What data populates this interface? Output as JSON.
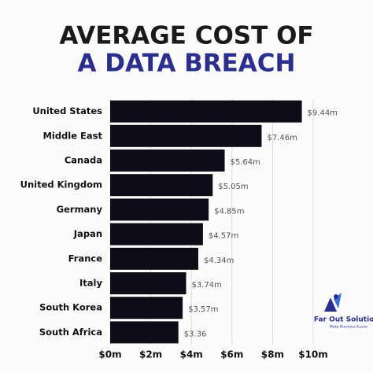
{
  "chart_data": {
    "type": "barh",
    "title_lines": [
      "AVERAGE COST OF",
      "A DATA BREACH"
    ],
    "title_colors": [
      "#1a1a1a",
      "#2b2f8c"
    ],
    "categories": [
      "United States",
      "Middle East",
      "Canada",
      "United Kingdom",
      "Germany",
      "Japan",
      "France",
      "Italy",
      "South Korea",
      "South Africa"
    ],
    "values": [
      9.44,
      7.46,
      5.64,
      5.05,
      4.85,
      4.57,
      4.34,
      3.74,
      3.57,
      3.36
    ],
    "value_labels": [
      "$9.44m",
      "$7.46m",
      "$5.64m",
      "$5.05m",
      "$4.85m",
      "$4.57m",
      "$4.34m",
      "$3.74m",
      "$3.57m",
      "$3.36"
    ],
    "color": "#0e0c16",
    "xlim": [
      0,
      10
    ],
    "xticks": [
      {
        "value": 0,
        "label": "$0m"
      },
      {
        "value": 2,
        "label": "$2m"
      },
      {
        "value": 4,
        "label": "$4m"
      },
      {
        "value": 6,
        "label": "$6m"
      },
      {
        "value": 8,
        "label": "$8m"
      },
      {
        "value": 10,
        "label": "$10m"
      }
    ],
    "grid": true
  },
  "logo": {
    "name": "Far Out Solutions",
    "tagline": "Make Business Easier"
  }
}
